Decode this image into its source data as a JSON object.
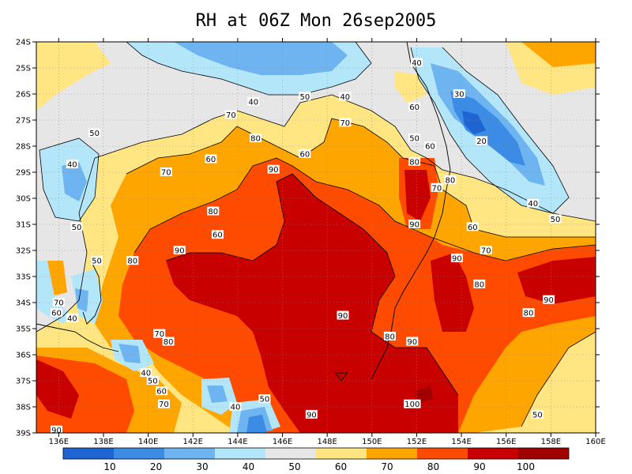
{
  "title": "RH at 06Z Mon 26sep2005",
  "axes": {
    "lat_labels": [
      "24S",
      "25S",
      "26S",
      "27S",
      "28S",
      "29S",
      "30S",
      "31S",
      "32S",
      "33S",
      "34S",
      "35S",
      "36S",
      "37S",
      "38S",
      "39S"
    ],
    "lon_labels": [
      "136E",
      "138E",
      "140E",
      "142E",
      "144E",
      "146E",
      "148E",
      "150E",
      "152E",
      "154E",
      "156E",
      "158E",
      "160E"
    ]
  },
  "colorbar": {
    "colors": [
      "#1e64d2",
      "#3c8ce6",
      "#6eb4f0",
      "#b4e6fa",
      "#e6e6e6",
      "#ffe682",
      "#ffa500",
      "#ff4b00",
      "#c80000",
      "#a00000"
    ],
    "labels": [
      "10",
      "20",
      "30",
      "40",
      "50",
      "60",
      "70",
      "80",
      "90",
      "100"
    ]
  },
  "contour_labels": [
    {
      "text": "40",
      "lon": 148.8,
      "lat": -26.1
    },
    {
      "text": "50",
      "lon": 147.0,
      "lat": -26.1
    },
    {
      "text": "40",
      "lon": 144.7,
      "lat": -26.3
    },
    {
      "text": "40",
      "lon": 152.0,
      "lat": -24.8
    },
    {
      "text": "60",
      "lon": 151.9,
      "lat": -26.5
    },
    {
      "text": "30",
      "lon": 153.9,
      "lat": -26.0
    },
    {
      "text": "20",
      "lon": 154.9,
      "lat": -27.8
    },
    {
      "text": "50",
      "lon": 151.9,
      "lat": -27.7
    },
    {
      "text": "60",
      "lon": 152.6,
      "lat": -28.0
    },
    {
      "text": "70",
      "lon": 143.7,
      "lat": -26.8
    },
    {
      "text": "70",
      "lon": 148.8,
      "lat": -27.1
    },
    {
      "text": "80",
      "lon": 144.8,
      "lat": -27.7
    },
    {
      "text": "60",
      "lon": 147.0,
      "lat": -28.3
    },
    {
      "text": "60",
      "lon": 142.8,
      "lat": -28.5
    },
    {
      "text": "50",
      "lon": 137.6,
      "lat": -27.5
    },
    {
      "text": "40",
      "lon": 136.6,
      "lat": -28.7
    },
    {
      "text": "70",
      "lon": 140.8,
      "lat": -29.0
    },
    {
      "text": "90",
      "lon": 145.6,
      "lat": -28.9
    },
    {
      "text": "80",
      "lon": 151.9,
      "lat": -28.6
    },
    {
      "text": "70",
      "lon": 152.9,
      "lat": -29.6
    },
    {
      "text": "80",
      "lon": 153.5,
      "lat": -29.3
    },
    {
      "text": "90",
      "lon": 151.9,
      "lat": -31.0
    },
    {
      "text": "40",
      "lon": 157.2,
      "lat": -30.2
    },
    {
      "text": "50",
      "lon": 158.2,
      "lat": -30.8
    },
    {
      "text": "60",
      "lon": 154.5,
      "lat": -31.1
    },
    {
      "text": "70",
      "lon": 155.1,
      "lat": -32.0
    },
    {
      "text": "80",
      "lon": 142.9,
      "lat": -30.5
    },
    {
      "text": "60",
      "lon": 143.1,
      "lat": -31.4
    },
    {
      "text": "90",
      "lon": 141.4,
      "lat": -32.0
    },
    {
      "text": "80",
      "lon": 139.3,
      "lat": -32.4
    },
    {
      "text": "50",
      "lon": 137.7,
      "lat": -32.4
    },
    {
      "text": "50",
      "lon": 136.8,
      "lat": -31.1
    },
    {
      "text": "90",
      "lon": 153.8,
      "lat": -32.3
    },
    {
      "text": "80",
      "lon": 154.8,
      "lat": -33.3
    },
    {
      "text": "90",
      "lon": 157.9,
      "lat": -33.9
    },
    {
      "text": "80",
      "lon": 157.0,
      "lat": -34.4
    },
    {
      "text": "90",
      "lon": 148.7,
      "lat": -34.5
    },
    {
      "text": "70",
      "lon": 136.0,
      "lat": -34.0
    },
    {
      "text": "60",
      "lon": 135.9,
      "lat": -34.4
    },
    {
      "text": "40",
      "lon": 136.6,
      "lat": -34.6
    },
    {
      "text": "70",
      "lon": 140.5,
      "lat": -35.2
    },
    {
      "text": "80",
      "lon": 140.9,
      "lat": -35.5
    },
    {
      "text": "80",
      "lon": 150.8,
      "lat": -35.3
    },
    {
      "text": "90",
      "lon": 151.8,
      "lat": -35.5
    },
    {
      "text": "40",
      "lon": 139.9,
      "lat": -36.7
    },
    {
      "text": "50",
      "lon": 140.2,
      "lat": -37.0
    },
    {
      "text": "60",
      "lon": 140.6,
      "lat": -37.4
    },
    {
      "text": "70",
      "lon": 140.7,
      "lat": -37.9
    },
    {
      "text": "90",
      "lon": 135.9,
      "lat": -38.9
    },
    {
      "text": "40",
      "lon": 143.9,
      "lat": -38.0
    },
    {
      "text": "50",
      "lon": 145.2,
      "lat": -37.7
    },
    {
      "text": "90",
      "lon": 147.3,
      "lat": -38.3
    },
    {
      "text": "100",
      "lon": 151.8,
      "lat": -37.9
    },
    {
      "text": "50",
      "lon": 157.4,
      "lat": -38.3
    }
  ]
}
